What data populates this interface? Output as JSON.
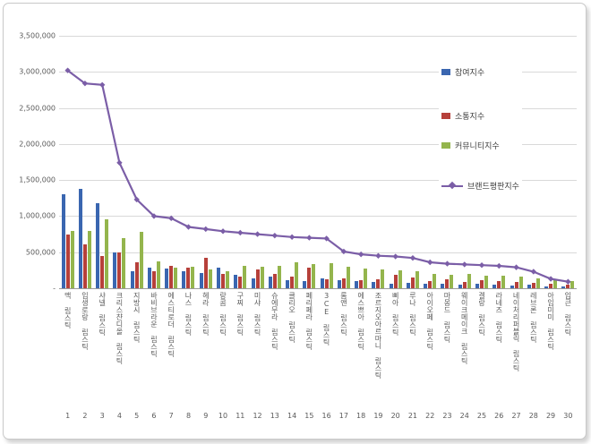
{
  "chart_data": {
    "type": "bar",
    "note": "grouped bar chart with overlaid line series, legend right overlay, grid on",
    "ylim": [
      0,
      3500000
    ],
    "y_ticks": [
      "3,500,000",
      "3,000,000",
      "2,500,000",
      "2,000,000",
      "1,500,000",
      "1,000,000",
      "500,000",
      "-"
    ],
    "categories": [
      "맥 립스틱",
      "입생로랑 립스틱",
      "샤넬 립스틱",
      "크리스챤디올 립스틱",
      "지방시 립스틱",
      "바비브라운 립스틱",
      "에스티로더 립스틱",
      "나스 립스틱",
      "헤라 립스틱",
      "랑콤 립스틱",
      "구찌 립스틱",
      "미샤 립스틱",
      "슈에무라 립스틱",
      "클리오 립스틱",
      "페리페라 립스틱",
      "3CE 립스틱",
      "롬앤 립스틱",
      "에스쁘아 립스틱",
      "조르지오아르마니 립스틱",
      "삐아 립스틱",
      "루나 립스틱",
      "아이오페 립스틱",
      "마몽드 립스틱",
      "웨이크메이크 립스틱",
      "겔랑 립스틱",
      "라네즈 립스틱",
      "네이처리퍼블릭 립스틱",
      "레브론 립스틱",
      "아임미미 립스틱",
      "입큰 립스틱"
    ],
    "ranks": [
      "1",
      "2",
      "3",
      "4",
      "5",
      "6",
      "7",
      "8",
      "9",
      "10",
      "11",
      "12",
      "13",
      "14",
      "15",
      "16",
      "17",
      "18",
      "19",
      "20",
      "21",
      "22",
      "23",
      "24",
      "25",
      "26",
      "27",
      "28",
      "29",
      "30"
    ],
    "series": [
      {
        "name": "참여지수",
        "type": "bar",
        "color": "#3a66b0",
        "values": [
          1300000,
          1380000,
          1180000,
          500000,
          230000,
          290000,
          270000,
          240000,
          210000,
          280000,
          190000,
          140000,
          160000,
          110000,
          100000,
          140000,
          110000,
          100000,
          90000,
          60000,
          75000,
          60000,
          60000,
          50000,
          60000,
          50000,
          40000,
          50000,
          25000,
          25000
        ]
      },
      {
        "name": "소통지수",
        "type": "bar",
        "color": "#b6403a",
        "values": [
          750000,
          610000,
          450000,
          500000,
          360000,
          230000,
          310000,
          280000,
          420000,
          200000,
          160000,
          260000,
          200000,
          160000,
          280000,
          130000,
          140000,
          110000,
          125000,
          190000,
          150000,
          100000,
          125000,
          90000,
          110000,
          100000,
          90000,
          75000,
          60000,
          50000
        ]
      },
      {
        "name": "커뮤니티지수",
        "type": "bar",
        "color": "#94b54d",
        "values": [
          800000,
          790000,
          950000,
          700000,
          780000,
          375000,
          280000,
          300000,
          260000,
          240000,
          310000,
          300000,
          310000,
          360000,
          340000,
          350000,
          300000,
          275000,
          260000,
          250000,
          240000,
          200000,
          190000,
          200000,
          175000,
          175000,
          160000,
          140000,
          110000,
          100000
        ]
      },
      {
        "name": "브랜드평판지수",
        "type": "line",
        "color": "#7b5ea7",
        "values": [
          3020000,
          2840000,
          2820000,
          1740000,
          1230000,
          1000000,
          970000,
          850000,
          820000,
          790000,
          770000,
          750000,
          730000,
          710000,
          700000,
          690000,
          510000,
          470000,
          450000,
          440000,
          420000,
          360000,
          340000,
          330000,
          320000,
          310000,
          290000,
          230000,
          130000,
          90000
        ]
      }
    ],
    "legend_position": "right-overlay"
  }
}
